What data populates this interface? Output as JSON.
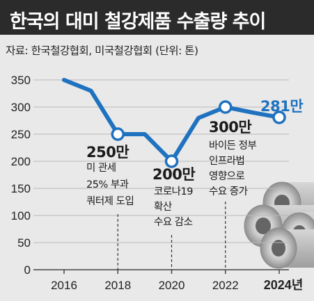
{
  "title": "한국의 대미 철강제품 수출량 추이",
  "source": "자료: 한국철강협회, 미국철강협회 (단위: 톤)",
  "colors": {
    "line": "#1f72bf",
    "accent": "#1f72bf",
    "title_bg": "#2b2b2b",
    "background": "#e9e9e9"
  },
  "chart_data": {
    "type": "line",
    "x": [
      2016,
      2017,
      2018,
      2019,
      2020,
      2021,
      2022,
      2023,
      2024
    ],
    "values": [
      350,
      330,
      250,
      250,
      200,
      280,
      300,
      290,
      281
    ],
    "ylim": [
      0,
      350
    ],
    "yticks": [
      0,
      50,
      100,
      150,
      200,
      250,
      300,
      350
    ],
    "ytick_labels": [
      "0",
      "50",
      "100",
      "150",
      "200",
      "250",
      "300",
      "350"
    ],
    "xticks": [
      2016,
      2018,
      2020,
      2022,
      2024
    ],
    "xtick_labels": [
      "2016",
      "2018",
      "2020",
      "2022",
      "2024년"
    ],
    "grid": true,
    "markers": [
      {
        "x": 2018,
        "y": 250,
        "value_label": "250만",
        "notes": [
          "미 관세",
          "25% 부과",
          "쿼터제 도입"
        ]
      },
      {
        "x": 2020,
        "y": 200,
        "value_label": "200만",
        "notes": [
          "코로나19",
          "확산",
          "수요 감소"
        ]
      },
      {
        "x": 2022,
        "y": 300,
        "value_label": "300만",
        "notes": [
          "바이든 정부",
          "인프라법",
          "영향으로",
          "수요 증가"
        ]
      },
      {
        "x": 2024,
        "y": 281,
        "value_label": "281만",
        "notes": []
      }
    ]
  }
}
